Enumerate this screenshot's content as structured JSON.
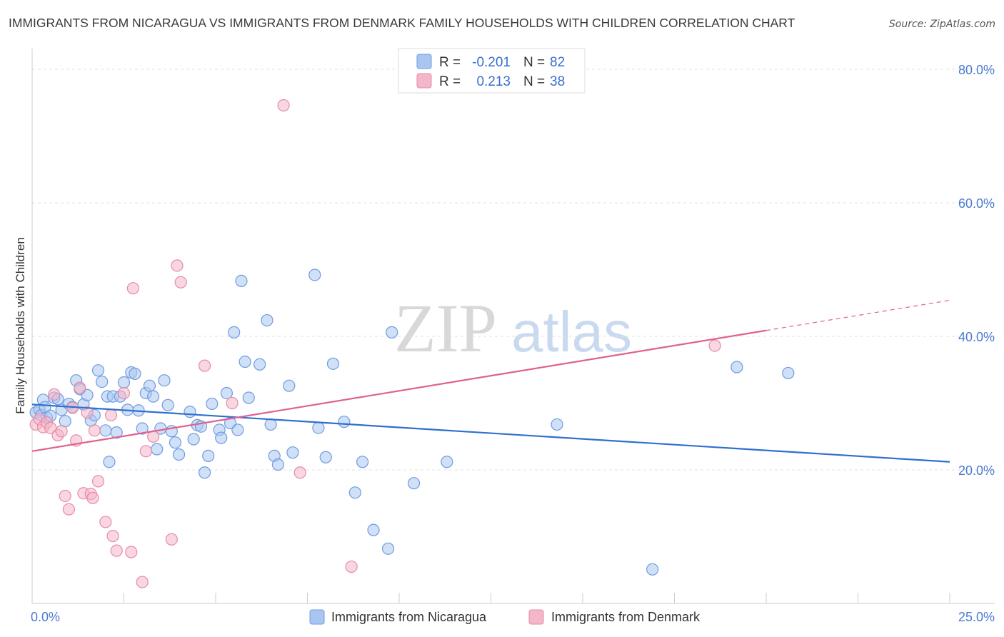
{
  "header": {
    "title": "IMMIGRANTS FROM NICARAGUA VS IMMIGRANTS FROM DENMARK FAMILY HOUSEHOLDS WITH CHILDREN CORRELATION CHART",
    "source": "Source: ZipAtlas.com"
  },
  "watermark": {
    "zip": "ZIP",
    "atlas": "atlas"
  },
  "legend": {
    "r_label": "R =",
    "n_label": "N =",
    "rows": [
      {
        "r": "-0.201",
        "n": "82",
        "color": "#a9c6f0"
      },
      {
        "r": "0.213",
        "n": "38",
        "color": "#f4b6c9"
      }
    ]
  },
  "colors": {
    "nicaragua_fill": "#a9c6f0",
    "nicaragua_stroke": "#6f9be0",
    "nicaragua_line": "#2f6fcf",
    "denmark_fill": "#f4b6c9",
    "denmark_stroke": "#e88aa8",
    "denmark_line": "#e0608e",
    "axis_label": "#4a7bd0",
    "grid": "#e2e2e2"
  },
  "chart_data": {
    "type": "scatter",
    "title": "IMMIGRANTS FROM NICARAGUA VS IMMIGRANTS FROM DENMARK FAMILY HOUSEHOLDS WITH CHILDREN CORRELATION CHART",
    "xlabel": "",
    "ylabel": "Family Households with Children",
    "xlim": [
      0,
      25
    ],
    "ylim": [
      0,
      80
    ],
    "x_tick_labels": [
      "0.0%",
      "25.0%"
    ],
    "y_ticks": [
      20,
      40,
      60,
      80
    ],
    "y_tick_labels": [
      "20.0%",
      "40.0%",
      "60.0%",
      "80.0%"
    ],
    "grid": true,
    "series": [
      {
        "name": "Immigrants from Nicaragua",
        "r": -0.201,
        "n": 82,
        "trend": {
          "x": [
            0,
            25
          ],
          "y": [
            29.8,
            21.2
          ]
        },
        "points": [
          [
            0.1,
            28.6
          ],
          [
            0.2,
            29.0
          ],
          [
            0.25,
            28.2
          ],
          [
            0.3,
            30.5
          ],
          [
            0.35,
            29.4
          ],
          [
            0.4,
            27.8
          ],
          [
            0.5,
            28.1
          ],
          [
            0.6,
            30.8
          ],
          [
            0.7,
            30.6
          ],
          [
            0.8,
            29.0
          ],
          [
            0.9,
            27.3
          ],
          [
            1.0,
            29.9
          ],
          [
            1.1,
            29.4
          ],
          [
            1.2,
            33.4
          ],
          [
            1.3,
            32.1
          ],
          [
            1.4,
            29.8
          ],
          [
            1.5,
            31.2
          ],
          [
            1.6,
            27.4
          ],
          [
            1.7,
            28.2
          ],
          [
            1.8,
            34.9
          ],
          [
            1.9,
            33.2
          ],
          [
            2.0,
            25.9
          ],
          [
            2.05,
            31.0
          ],
          [
            2.1,
            21.2
          ],
          [
            2.2,
            31.0
          ],
          [
            2.3,
            25.6
          ],
          [
            2.4,
            31.0
          ],
          [
            2.5,
            33.1
          ],
          [
            2.6,
            29.0
          ],
          [
            2.7,
            34.6
          ],
          [
            2.8,
            34.4
          ],
          [
            2.9,
            28.9
          ],
          [
            3.0,
            26.2
          ],
          [
            3.1,
            31.5
          ],
          [
            3.2,
            32.6
          ],
          [
            3.3,
            31.0
          ],
          [
            3.4,
            23.1
          ],
          [
            3.5,
            26.2
          ],
          [
            3.6,
            33.4
          ],
          [
            3.7,
            29.7
          ],
          [
            3.8,
            25.8
          ],
          [
            3.9,
            24.1
          ],
          [
            4.0,
            22.3
          ],
          [
            4.3,
            28.7
          ],
          [
            4.4,
            24.6
          ],
          [
            4.5,
            26.7
          ],
          [
            4.6,
            26.5
          ],
          [
            4.7,
            19.6
          ],
          [
            4.8,
            22.1
          ],
          [
            4.9,
            29.9
          ],
          [
            5.1,
            26.0
          ],
          [
            5.15,
            24.8
          ],
          [
            5.3,
            31.5
          ],
          [
            5.4,
            27.0
          ],
          [
            5.5,
            40.6
          ],
          [
            5.6,
            26.0
          ],
          [
            5.7,
            48.3
          ],
          [
            5.8,
            36.2
          ],
          [
            5.9,
            30.8
          ],
          [
            6.2,
            35.8
          ],
          [
            6.4,
            42.4
          ],
          [
            6.5,
            26.8
          ],
          [
            6.6,
            22.1
          ],
          [
            6.7,
            20.8
          ],
          [
            7.0,
            32.6
          ],
          [
            7.1,
            22.6
          ],
          [
            7.7,
            49.2
          ],
          [
            7.8,
            26.3
          ],
          [
            8.0,
            21.9
          ],
          [
            8.2,
            35.9
          ],
          [
            8.5,
            27.2
          ],
          [
            8.8,
            16.6
          ],
          [
            9.0,
            21.2
          ],
          [
            9.3,
            11.0
          ],
          [
            9.7,
            8.2
          ],
          [
            9.8,
            40.6
          ],
          [
            10.4,
            18.0
          ],
          [
            11.3,
            21.2
          ],
          [
            14.3,
            26.8
          ],
          [
            16.9,
            5.1
          ],
          [
            19.2,
            35.4
          ],
          [
            20.6,
            34.5
          ]
        ]
      },
      {
        "name": "Immigrants from Denmark",
        "r": 0.213,
        "n": 38,
        "trend": {
          "x": [
            0,
            25
          ],
          "y": [
            22.8,
            45.4
          ]
        },
        "trend_solid_until_x": 20.0,
        "points": [
          [
            0.1,
            26.8
          ],
          [
            0.2,
            27.6
          ],
          [
            0.3,
            26.4
          ],
          [
            0.4,
            27.1
          ],
          [
            0.5,
            26.3
          ],
          [
            0.6,
            31.3
          ],
          [
            0.7,
            25.2
          ],
          [
            0.8,
            25.8
          ],
          [
            0.9,
            16.1
          ],
          [
            1.0,
            14.1
          ],
          [
            1.1,
            29.3
          ],
          [
            1.2,
            24.4
          ],
          [
            1.3,
            32.3
          ],
          [
            1.4,
            16.5
          ],
          [
            1.5,
            28.6
          ],
          [
            1.6,
            16.4
          ],
          [
            1.65,
            15.8
          ],
          [
            1.7,
            25.9
          ],
          [
            1.8,
            18.3
          ],
          [
            2.0,
            12.2
          ],
          [
            2.15,
            28.2
          ],
          [
            2.2,
            10.1
          ],
          [
            2.3,
            7.9
          ],
          [
            2.5,
            31.5
          ],
          [
            2.7,
            7.7
          ],
          [
            2.75,
            47.2
          ],
          [
            3.0,
            3.2
          ],
          [
            3.1,
            22.8
          ],
          [
            3.3,
            25.0
          ],
          [
            3.8,
            9.6
          ],
          [
            3.95,
            50.6
          ],
          [
            4.05,
            48.1
          ],
          [
            4.7,
            35.6
          ],
          [
            5.45,
            30.0
          ],
          [
            6.85,
            74.6
          ],
          [
            7.3,
            19.6
          ],
          [
            8.7,
            5.5
          ],
          [
            18.6,
            38.6
          ]
        ]
      }
    ]
  },
  "bottom_legend": {
    "items": [
      {
        "label": "Immigrants from Nicaragua"
      },
      {
        "label": "Immigrants from Denmark"
      }
    ]
  }
}
